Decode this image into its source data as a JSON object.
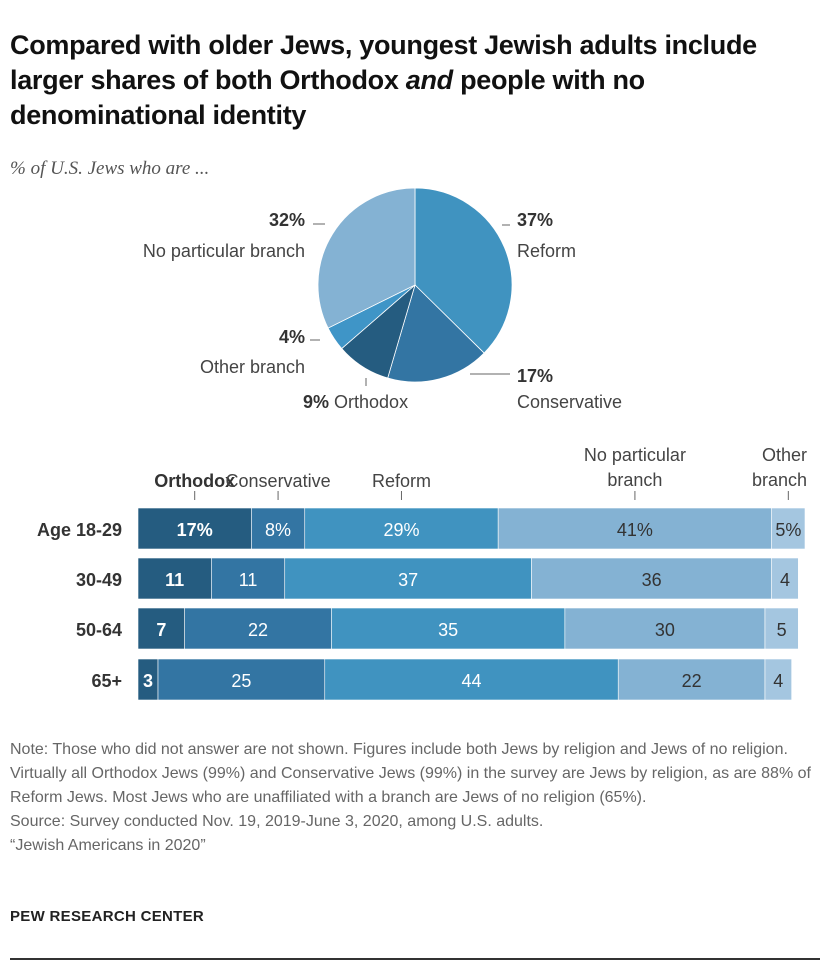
{
  "title_parts": [
    "Compared with older Jews, youngest Jewish adults include larger shares of both Orthodox ",
    "and",
    " people with no denominational identity"
  ],
  "subtitle": "% of U.S. Jews who are ...",
  "colors": {
    "Orthodox": "#255c80",
    "Conservative": "#3375a3",
    "Reform": "#4093c0",
    "No particular branch": "#84b2d3",
    "Other branch": "#a4c6e0",
    "Other branch (pie)": "#3f95c7"
  },
  "chart_data": [
    {
      "type": "pie",
      "slices": [
        {
          "label": "Reform",
          "value": 37,
          "value_label": "37%"
        },
        {
          "label": "Conservative",
          "value": 17,
          "value_label": "17%"
        },
        {
          "label": "Orthodox",
          "value": 9,
          "value_label": "9%"
        },
        {
          "label": "Other branch",
          "value": 4,
          "value_label": "4%"
        },
        {
          "label": "No particular branch",
          "value": 32,
          "value_label": "32%"
        }
      ]
    },
    {
      "type": "bar",
      "orientation": "horizontal-stacked",
      "categories": [
        "Age 18-29",
        "30-49",
        "50-64",
        "65+"
      ],
      "series": [
        {
          "name": "Orthodox",
          "values": [
            17,
            11,
            7,
            3
          ]
        },
        {
          "name": "Conservative",
          "values": [
            8,
            11,
            22,
            25
          ]
        },
        {
          "name": "Reform",
          "values": [
            29,
            37,
            35,
            44
          ]
        },
        {
          "name": "No particular branch",
          "values": [
            41,
            36,
            30,
            22
          ]
        },
        {
          "name": "Other branch",
          "values": [
            5,
            4,
            5,
            4
          ]
        }
      ],
      "first_row_labels": [
        "17%",
        "8%",
        "29%",
        "41%",
        "5%"
      ],
      "series_headers": [
        [
          "Orthodox"
        ],
        [
          "Conservative"
        ],
        [
          "Reform"
        ],
        [
          "No particular",
          "branch"
        ],
        [
          "Other",
          "branch"
        ]
      ],
      "xlim": [
        0,
        100
      ]
    }
  ],
  "note": "Note: Those who did not answer are not shown. Figures include both Jews by religion and Jews of no religion. Virtually all Orthodox Jews (99%) and Conservative Jews (99%) in the survey are Jews by religion, as are 88% of Reform Jews. Most Jews who are unaffiliated with a branch are Jews of no religion (65%).",
  "source": "Source: Survey conducted Nov. 19, 2019-June 3, 2020, among U.S. adults.",
  "report": "“Jewish Americans in 2020”",
  "logo": "PEW RESEARCH CENTER"
}
